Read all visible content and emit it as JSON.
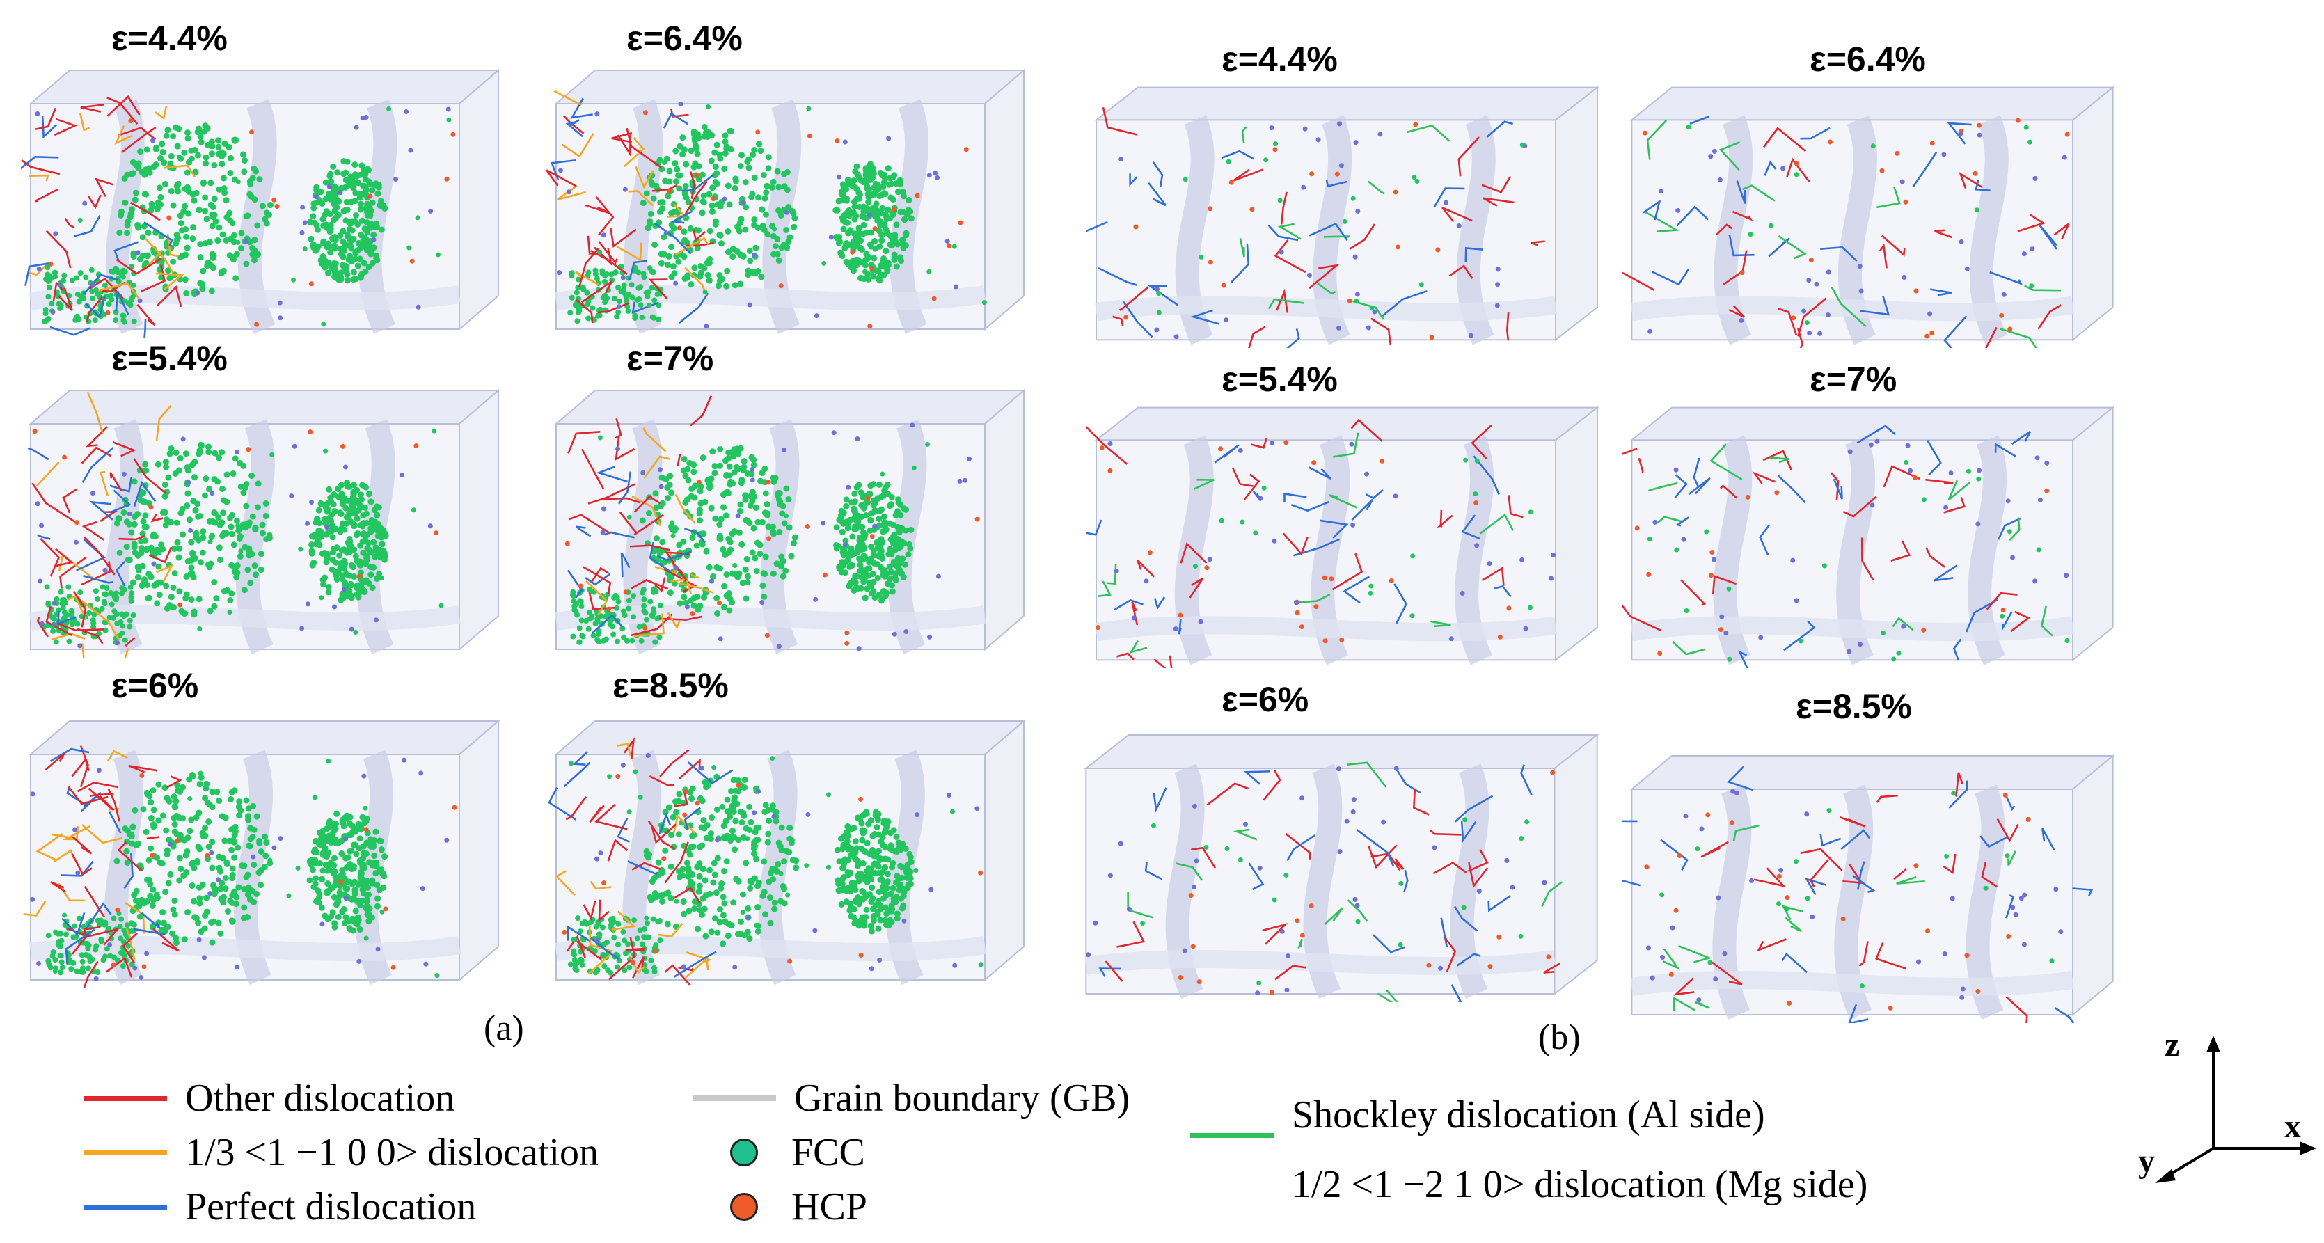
{
  "figure": {
    "panel_a": {
      "label": "(a)",
      "snapshots": [
        {
          "strain": "ε=4.4%"
        },
        {
          "strain": "ε=6.4%"
        },
        {
          "strain": "ε=5.4%"
        },
        {
          "strain": "ε=7%"
        },
        {
          "strain": "ε=6%"
        },
        {
          "strain": "ε=8.5%"
        }
      ]
    },
    "panel_b": {
      "label": "(b)",
      "snapshots": [
        {
          "strain": "ε=4.4%"
        },
        {
          "strain": "ε=6.4%"
        },
        {
          "strain": "ε=5.4%"
        },
        {
          "strain": "ε=7%"
        },
        {
          "strain": "ε=6%"
        },
        {
          "strain": "ε=8.5%"
        }
      ]
    },
    "legend": {
      "items": [
        {
          "label": "Other dislocation",
          "color": "#e0262f"
        },
        {
          "label": "1/3 <1 −1 0 0> dislocation",
          "color": "#f5a623"
        },
        {
          "label": "Perfect dislocation",
          "color": "#2f6fd6"
        },
        {
          "label": "Grain boundary (GB)",
          "color": "#c8c8c8"
        },
        {
          "label": "FCC",
          "color": "#1fbf8f"
        },
        {
          "label": "HCP",
          "color": "#ef5a2a"
        },
        {
          "label": "Shockley dislocation (Al side)",
          "color": "#2fc25a"
        },
        {
          "label": "1/2 <1 −2 1 0> dislocation (Mg side)"
        }
      ]
    },
    "axes": {
      "z": "z",
      "y": "y",
      "x": "x"
    }
  }
}
